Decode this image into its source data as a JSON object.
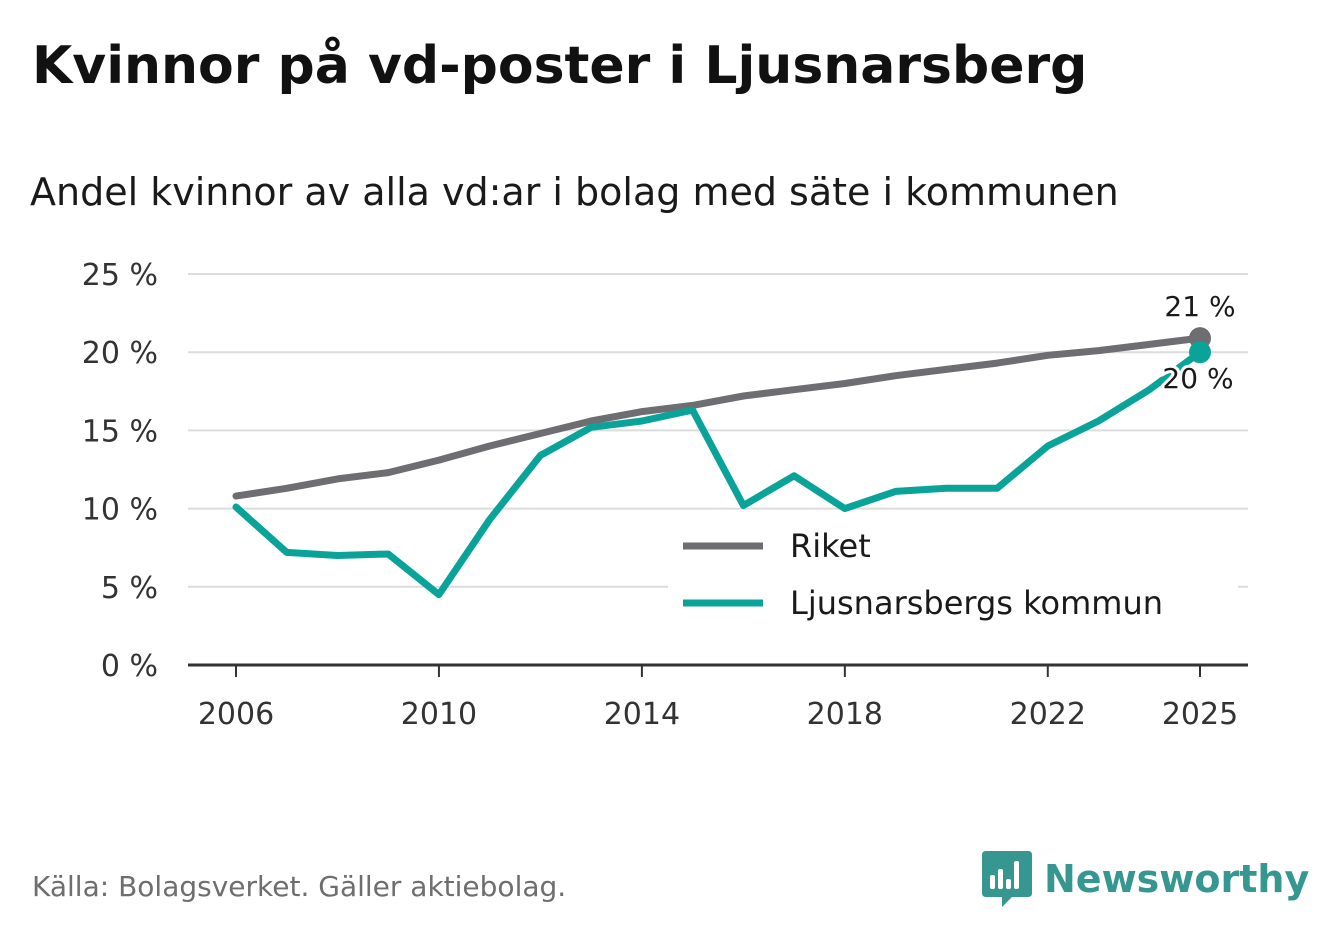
{
  "header": {
    "title": "Kvinnor på vd-poster i Ljusnarsberg",
    "subtitle": "Andel kvinnor av alla vd:ar i bolag med säte i kommunen"
  },
  "footer": {
    "source": "Källa: Bolagsverket. Gäller aktiebolag.",
    "brand": "Newsworthy"
  },
  "colors": {
    "riket": "#6e6d72",
    "kommun": "#0aa39a",
    "grid": "#dcdcdc",
    "axis": "#333333",
    "brand": "#35978f"
  },
  "chart_data": {
    "type": "line",
    "title": "Kvinnor på vd-poster i Ljusnarsberg",
    "subtitle": "Andel kvinnor av alla vd:ar i bolag med säte i kommunen",
    "x": [
      2006,
      2007,
      2008,
      2009,
      2010,
      2011,
      2012,
      2013,
      2014,
      2015,
      2016,
      2017,
      2018,
      2019,
      2020,
      2021,
      2022,
      2023,
      2024,
      2025
    ],
    "series": [
      {
        "name": "Riket",
        "values": [
          10.8,
          11.3,
          11.9,
          12.3,
          13.1,
          14.0,
          14.8,
          15.6,
          16.2,
          16.6,
          17.2,
          17.6,
          18.0,
          18.5,
          18.9,
          19.3,
          19.8,
          20.1,
          20.5,
          20.9
        ],
        "end_label": "21 %"
      },
      {
        "name": "Ljusnarsbergs kommun",
        "values": [
          10.1,
          7.2,
          7.0,
          7.1,
          4.5,
          9.3,
          13.4,
          15.2,
          15.6,
          16.3,
          10.2,
          12.1,
          10.0,
          11.1,
          11.3,
          11.3,
          14.0,
          15.6,
          17.6,
          20.0
        ],
        "end_label": "20 %"
      }
    ],
    "x_ticks": [
      2006,
      2010,
      2014,
      2018,
      2022,
      2025
    ],
    "x_tick_labels": [
      "2006",
      "2010",
      "2014",
      "2018",
      "2022",
      "2025"
    ],
    "y_ticks": [
      0,
      5,
      10,
      15,
      20,
      25
    ],
    "y_tick_labels": [
      "0 %",
      "5 %",
      "10 %",
      "15 %",
      "20 %",
      "25 %"
    ],
    "ylim": [
      0,
      25
    ],
    "xlim": [
      2006,
      2025
    ],
    "grid": true,
    "legend_position": "bottom-right"
  }
}
